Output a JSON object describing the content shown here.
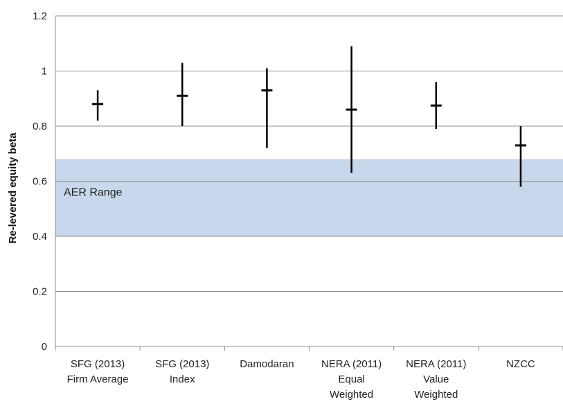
{
  "chart_data": {
    "type": "range",
    "ylabel": "Re-levered equity beta",
    "ylim": [
      0,
      1.2
    ],
    "yticks": [
      "0",
      "0.2",
      "0.4",
      "0.6",
      "0.8",
      "1",
      "1.2"
    ],
    "ytick_values": [
      0,
      0.2,
      0.4,
      0.6,
      0.8,
      1.0,
      1.2
    ],
    "grid": true,
    "categories": [
      [
        "SFG (2013)",
        "Firm Average"
      ],
      [
        "SFG (2013)",
        "Index"
      ],
      [
        "Damodaran"
      ],
      [
        "NERA (2011)",
        "Equal",
        "Weighted"
      ],
      [
        "NERA (2011)",
        "Value",
        "Weighted"
      ],
      [
        "NZCC"
      ]
    ],
    "series": [
      {
        "low": 0.82,
        "mid": 0.88,
        "high": 0.93
      },
      {
        "low": 0.8,
        "mid": 0.91,
        "high": 1.03
      },
      {
        "low": 0.72,
        "mid": 0.93,
        "high": 1.01
      },
      {
        "low": 0.63,
        "mid": 0.86,
        "high": 1.09
      },
      {
        "low": 0.79,
        "mid": 0.875,
        "high": 0.96
      },
      {
        "low": 0.58,
        "mid": 0.73,
        "high": 0.8
      }
    ],
    "band": {
      "label": "AER Range",
      "low": 0.4,
      "high": 0.68,
      "color": "#c9d7ec"
    },
    "colors": {
      "mark": "#000000",
      "grid": "#8c8c8c",
      "axis": "#8c8c8c"
    }
  }
}
